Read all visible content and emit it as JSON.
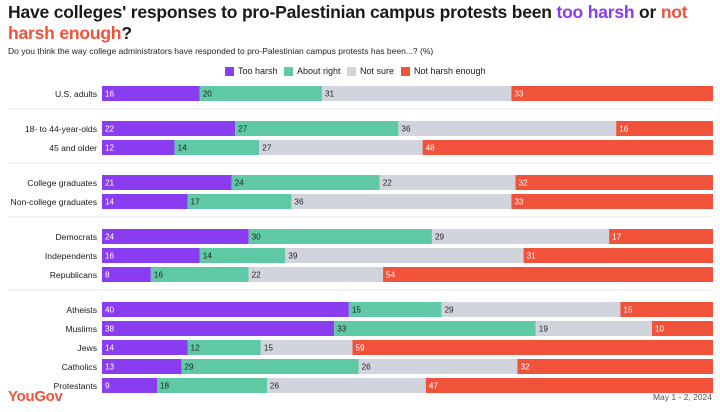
{
  "title": {
    "part1": "Have colleges' responses to pro-Palestinian campus protests been ",
    "highlight1": "too harsh",
    "part2": " or ",
    "highlight2": "not harsh enough",
    "part3": "?"
  },
  "subtitle": "Do you think the way college administrators have responded to pro-Palestinian campus protests has been...? (%)",
  "footer": {
    "brand": "YouGov",
    "date": "May 1 - 2, 2024"
  },
  "colors": {
    "too_harsh": "#8a3cf0",
    "about_right": "#5fc8a5",
    "not_sure": "#d2d4dd",
    "not_harsh_enough": "#f0523a"
  },
  "chart_data": {
    "type": "bar",
    "orientation": "horizontal",
    "stacked": true,
    "series": [
      {
        "name": "Too harsh",
        "color_key": "too_harsh"
      },
      {
        "name": "About right",
        "color_key": "about_right"
      },
      {
        "name": "Not sure",
        "color_key": "not_sure"
      },
      {
        "name": "Not harsh enough",
        "color_key": "not_harsh_enough"
      }
    ],
    "groups": [
      {
        "rows": [
          {
            "label": "U.S. adults",
            "values": [
              16,
              20,
              31,
              33
            ]
          }
        ]
      },
      {
        "rows": [
          {
            "label": "18- to 44-year-olds",
            "values": [
              22,
              27,
              36,
              16
            ]
          },
          {
            "label": "45 and older",
            "values": [
              12,
              14,
              27,
              48
            ]
          }
        ]
      },
      {
        "rows": [
          {
            "label": "College graduates",
            "values": [
              21,
              24,
              22,
              32
            ]
          },
          {
            "label": "Non-college graduates",
            "values": [
              14,
              17,
              36,
              33
            ]
          }
        ]
      },
      {
        "rows": [
          {
            "label": "Democrats",
            "values": [
              24,
              30,
              29,
              17
            ]
          },
          {
            "label": "Independents",
            "values": [
              16,
              14,
              39,
              31
            ]
          },
          {
            "label": "Republicans",
            "values": [
              8,
              16,
              22,
              54
            ]
          }
        ]
      },
      {
        "rows": [
          {
            "label": "Atheists",
            "values": [
              40,
              15,
              29,
              15
            ]
          },
          {
            "label": "Muslims",
            "values": [
              38,
              33,
              19,
              10
            ]
          },
          {
            "label": "Jews",
            "values": [
              14,
              12,
              15,
              59
            ]
          },
          {
            "label": "Catholics",
            "values": [
              13,
              29,
              26,
              32
            ]
          },
          {
            "label": "Protestants",
            "values": [
              9,
              18,
              26,
              47
            ]
          }
        ]
      }
    ],
    "legend_position": "top-center",
    "grid": false
  }
}
